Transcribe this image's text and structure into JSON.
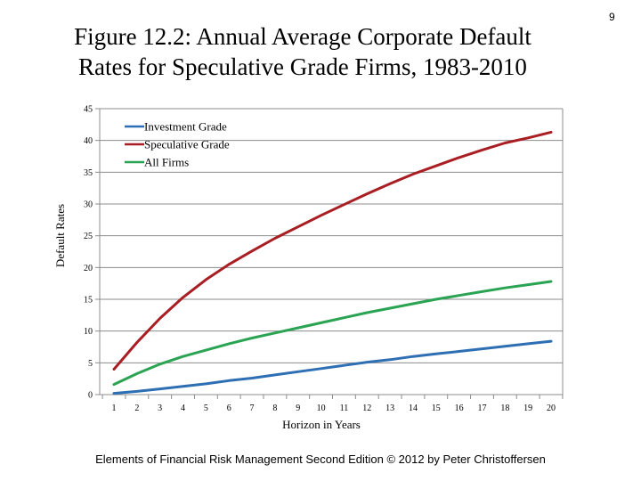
{
  "page": {
    "number": "9",
    "title_line1": "Figure 12.2: Annual Average Corporate Default",
    "title_line2": "Rates for Speculative Grade Firms, 1983-2010",
    "footer": "Elements of Financial Risk Management Second Edition © 2012  by Peter Christoffersen"
  },
  "chart_data": {
    "type": "line",
    "title": "",
    "xlabel": "Horizon in Years",
    "ylabel": "Default Rates",
    "x": [
      1,
      2,
      3,
      4,
      5,
      6,
      7,
      8,
      9,
      10,
      11,
      12,
      13,
      14,
      15,
      16,
      17,
      18,
      19,
      20
    ],
    "xticks": [
      "1",
      "2",
      "3",
      "4",
      "5",
      "6",
      "7",
      "8",
      "9",
      "10",
      "11",
      "12",
      "13",
      "14",
      "15",
      "16",
      "17",
      "18",
      "19",
      "20"
    ],
    "yticks": [
      "0",
      "5",
      "10",
      "15",
      "20",
      "25",
      "30",
      "35",
      "40",
      "45"
    ],
    "ylim": [
      0,
      45
    ],
    "grid": "horizontal",
    "legend_position": "top-left",
    "series": [
      {
        "name": "Investment Grade",
        "color": "#2e6fb4",
        "values": [
          0.2,
          0.5,
          0.9,
          1.3,
          1.7,
          2.2,
          2.6,
          3.1,
          3.6,
          4.1,
          4.6,
          5.1,
          5.5,
          6.0,
          6.4,
          6.8,
          7.2,
          7.6,
          8.0,
          8.4
        ]
      },
      {
        "name": "Speculative Grade",
        "color": "#a91e23",
        "values": [
          4.0,
          8.2,
          12.0,
          15.3,
          18.1,
          20.5,
          22.6,
          24.6,
          26.4,
          28.2,
          29.9,
          31.6,
          33.2,
          34.7,
          36.0,
          37.3,
          38.5,
          39.6,
          40.4,
          41.3
        ]
      },
      {
        "name": "All Firms",
        "color": "#2aa352",
        "values": [
          1.6,
          3.3,
          4.8,
          6.0,
          7.0,
          8.0,
          8.9,
          9.7,
          10.5,
          11.3,
          12.1,
          12.9,
          13.6,
          14.3,
          15.0,
          15.6,
          16.2,
          16.8,
          17.3,
          17.8
        ]
      }
    ]
  }
}
